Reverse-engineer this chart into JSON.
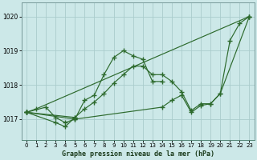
{
  "title": "Graphe pression niveau de la mer (hPa)",
  "bg_color": "#cce8e8",
  "grid_color": "#aacccc",
  "line_color": "#2d6a2d",
  "xlim": [
    -0.5,
    23.5
  ],
  "ylim": [
    1016.4,
    1020.4
  ],
  "yticks": [
    1017,
    1018,
    1019,
    1020
  ],
  "xticks": [
    0,
    1,
    2,
    3,
    4,
    5,
    6,
    7,
    8,
    9,
    10,
    11,
    12,
    13,
    14,
    15,
    16,
    17,
    18,
    19,
    20,
    21,
    22,
    23
  ],
  "series": [
    {
      "x": [
        0,
        1,
        23
      ],
      "y": [
        1017.2,
        1017.3,
        1020.0
      ]
    },
    {
      "x": [
        0,
        2,
        3,
        4,
        5,
        6,
        7,
        8,
        9,
        10,
        11,
        12,
        13,
        14
      ],
      "y": [
        1017.2,
        1017.35,
        1017.05,
        1016.9,
        1017.0,
        1017.55,
        1017.7,
        1018.3,
        1018.8,
        1019.0,
        1018.85,
        1018.75,
        1018.1,
        1018.1
      ]
    },
    {
      "x": [
        0,
        3,
        4,
        5
      ],
      "y": [
        1017.2,
        1016.9,
        1016.78,
        1017.05
      ]
    },
    {
      "x": [
        0,
        5,
        6,
        7,
        8,
        9,
        10,
        11,
        12,
        13,
        14,
        15,
        16,
        17,
        18,
        19,
        20,
        21,
        22,
        23
      ],
      "y": [
        1017.2,
        1017.05,
        1017.3,
        1017.5,
        1017.75,
        1018.05,
        1018.3,
        1018.55,
        1018.55,
        1018.3,
        1018.3,
        1018.1,
        1017.8,
        1017.25,
        1017.45,
        1017.45,
        1017.75,
        1019.3,
        1019.8,
        1020.0
      ]
    },
    {
      "x": [
        0,
        5,
        14,
        15,
        16,
        17,
        18,
        19,
        20,
        23
      ],
      "y": [
        1017.2,
        1017.0,
        1017.35,
        1017.55,
        1017.7,
        1017.2,
        1017.4,
        1017.45,
        1017.75,
        1020.0
      ]
    }
  ]
}
